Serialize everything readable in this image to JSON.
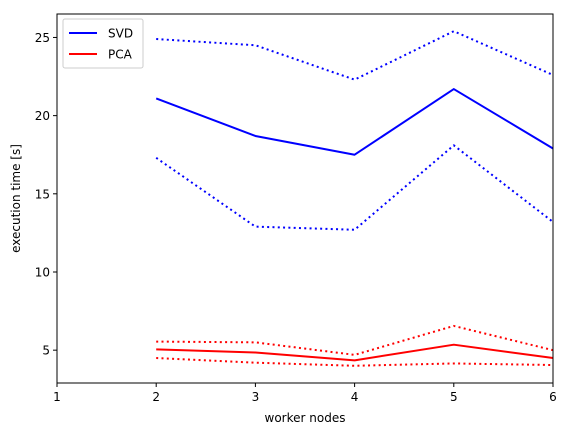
{
  "chart_data": {
    "type": "line",
    "xlabel": "worker nodes",
    "ylabel": "execution time [s]",
    "xlim": [
      1,
      6
    ],
    "ylim": [
      2.9,
      26.5
    ],
    "xticks": [
      1,
      2,
      3,
      4,
      5,
      6
    ],
    "yticks": [
      5,
      10,
      15,
      20,
      25
    ],
    "grid": false,
    "legend": {
      "position": "top-left",
      "entries": [
        "SVD",
        "PCA"
      ]
    },
    "x": [
      2,
      3,
      4,
      5,
      6
    ],
    "series": [
      {
        "name": "SVD",
        "color": "#0000ff",
        "style": "solid",
        "values": [
          21.1,
          18.7,
          17.5,
          21.7,
          17.9
        ]
      },
      {
        "color": "#0000ff",
        "style": "dotted",
        "values": [
          24.9,
          24.5,
          22.3,
          25.4,
          22.6
        ]
      },
      {
        "color": "#0000ff",
        "style": "dotted",
        "values": [
          17.3,
          12.9,
          12.7,
          18.1,
          13.2
        ]
      },
      {
        "name": "PCA",
        "color": "#ff0000",
        "style": "solid",
        "values": [
          5.05,
          4.85,
          4.35,
          5.35,
          4.5
        ]
      },
      {
        "color": "#ff0000",
        "style": "dotted",
        "values": [
          5.55,
          5.5,
          4.7,
          6.55,
          5.0
        ]
      },
      {
        "color": "#ff0000",
        "style": "dotted",
        "values": [
          4.5,
          4.2,
          4.0,
          4.15,
          4.05
        ]
      }
    ]
  }
}
